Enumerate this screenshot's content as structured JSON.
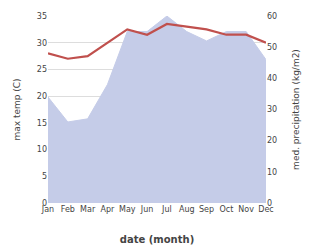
{
  "chart_data": {
    "type": "line",
    "xlabel": "date (month)",
    "ylabel": "max temp (C)",
    "y2label": "med. precipitation (kg/m2)",
    "categories": [
      "Jan",
      "Feb",
      "Mar",
      "Apr",
      "May",
      "Jun",
      "Jul",
      "Aug",
      "Sep",
      "Oct",
      "Nov",
      "Dec"
    ],
    "series": [
      {
        "type": "line",
        "color": "#c0504d",
        "values": [
          28,
          27,
          27.5,
          30,
          32.5,
          31.5,
          33.5,
          33,
          32.5,
          31.5,
          31.5,
          30
        ]
      },
      {
        "type": "area",
        "axis": "y2",
        "color": "#c5cce8",
        "values": [
          34,
          26,
          27,
          38,
          55,
          55,
          60,
          55,
          52,
          55,
          55,
          46
        ]
      }
    ],
    "ylim": [
      0,
      35
    ],
    "yticks": [
      0,
      5,
      10,
      15,
      20,
      25,
      30,
      35
    ],
    "y2lim": [
      0,
      60
    ],
    "y2ticks": [
      0,
      10,
      20,
      30,
      40,
      50,
      60
    ],
    "grid": true
  }
}
